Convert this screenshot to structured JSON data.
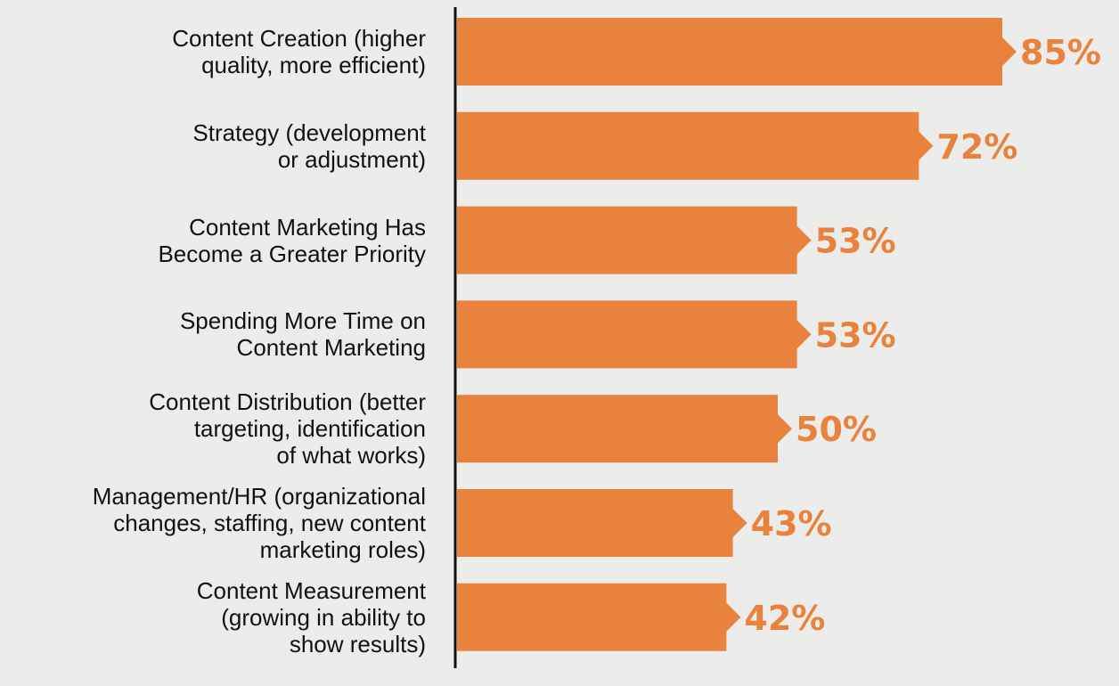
{
  "colors": {
    "bar": "#e8823c",
    "value_text": "#e8823c",
    "axis": "#111111",
    "background": "#ececea"
  },
  "chart_data": {
    "type": "bar",
    "orientation": "horizontal",
    "categories": [
      [
        "Content Creation (higher",
        "quality, more efficient)"
      ],
      [
        "Strategy (development",
        "or adjustment)"
      ],
      [
        "Content Marketing Has",
        "Become a Greater Priority"
      ],
      [
        "Spending More Time on",
        "Content Marketing"
      ],
      [
        "Content Distribution (better",
        "targeting, identification",
        "of what works)"
      ],
      [
        "Management/HR (organizational",
        "changes, staffing, new content",
        "marketing roles)"
      ],
      [
        "Content Measurement",
        "(growing in ability to",
        "show results)"
      ]
    ],
    "values": [
      85,
      72,
      53,
      53,
      50,
      43,
      42
    ],
    "value_labels": [
      "85%",
      "72%",
      "53%",
      "53%",
      "50%",
      "43%",
      "42%"
    ],
    "xlim": [
      0,
      100
    ],
    "grid": false,
    "legend": "none"
  }
}
